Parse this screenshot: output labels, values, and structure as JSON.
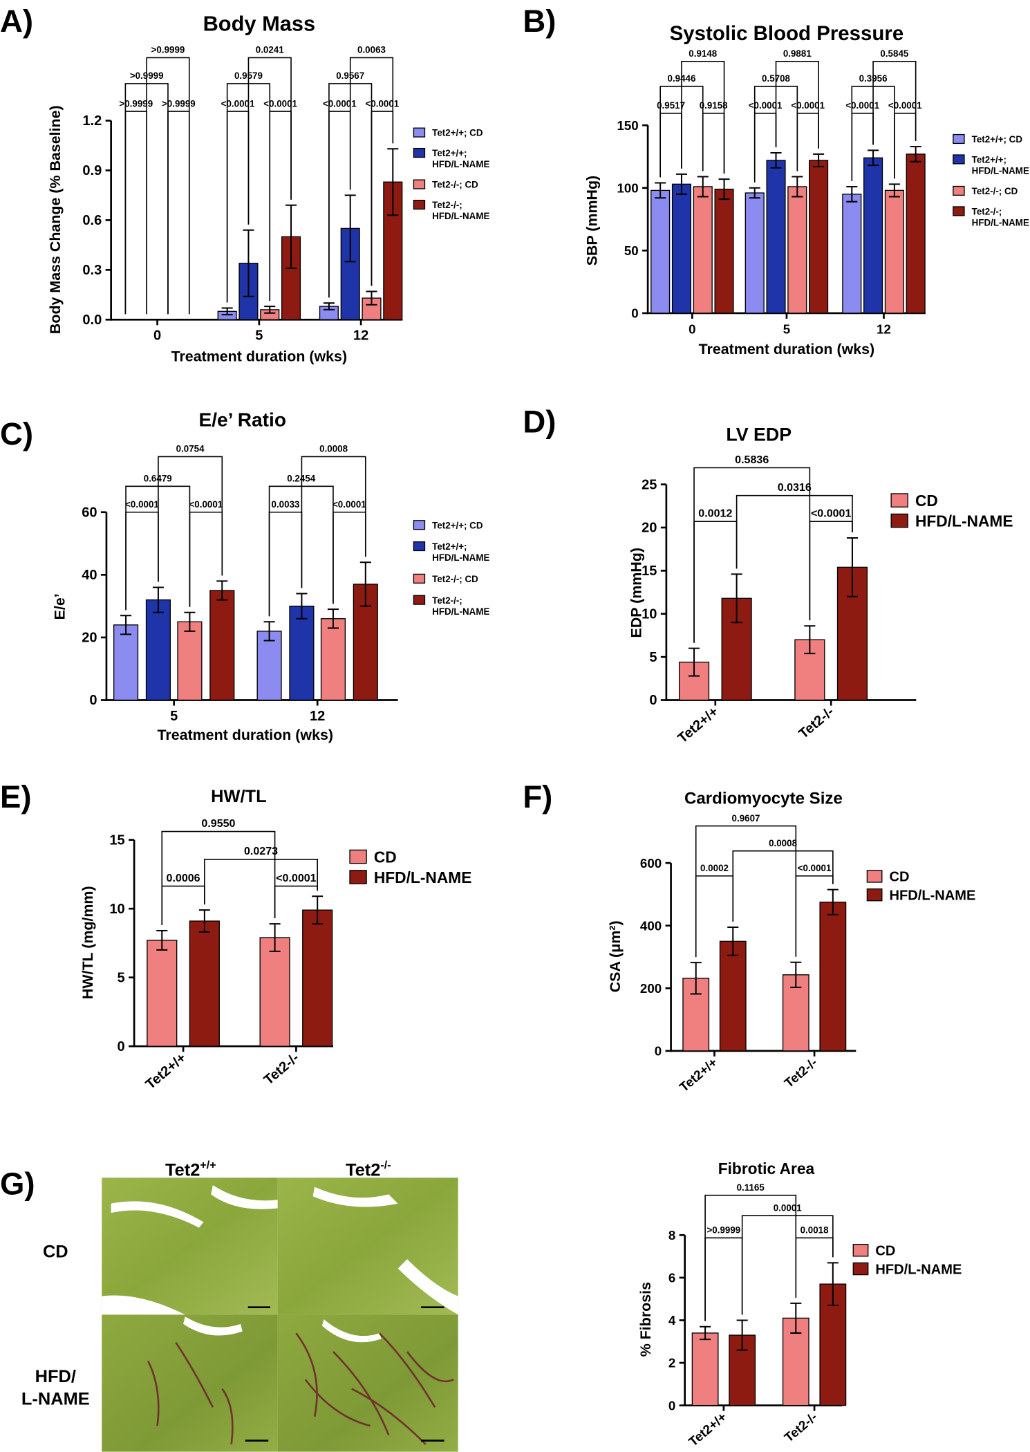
{
  "chart_data": [
    {
      "type": "bar",
      "panel": "A)",
      "title": "Body Mass",
      "xlabel": "Treatment duration (wks)",
      "ylabel": "Body Mass Change (% Baseline)",
      "categories": [
        "0",
        "5",
        "12"
      ],
      "series": [
        {
          "name": "Tet2+/+; CD",
          "color": "#8c8cf0",
          "values": [
            0,
            0.05,
            0.08
          ],
          "errors": [
            0,
            0.02,
            0.02
          ]
        },
        {
          "name": "Tet2+/+; HFD/L-NAME",
          "color": "#1f34a8",
          "values": [
            0,
            0.34,
            0.55
          ],
          "errors": [
            0,
            0.2,
            0.2
          ]
        },
        {
          "name": "Tet2-/-; CD",
          "color": "#f08080",
          "values": [
            0,
            0.06,
            0.13
          ],
          "errors": [
            0,
            0.02,
            0.04
          ]
        },
        {
          "name": "Tet2-/-; HFD/L-NAME",
          "color": "#8e1b12",
          "values": [
            0,
            0.5,
            0.83
          ],
          "errors": [
            0,
            0.19,
            0.2
          ]
        }
      ],
      "ylim": [
        0,
        1.2
      ],
      "yticks": [
        {
          "value": 0,
          "label": "0.0"
        },
        0.3,
        0.6,
        0.9,
        1.2
      ],
      "annotations": [
        ">0.9999",
        ">0.9999",
        ">0.9999",
        ">0.9999",
        "<0.0001",
        "<0.0001",
        "0.9579",
        "0.0241",
        "<0.0001",
        "<0.0001",
        "0.9567",
        "0.0063"
      ]
    },
    {
      "type": "bar",
      "panel": "B)",
      "title": "Systolic Blood Pressure",
      "xlabel": "Treatment duration (wks)",
      "ylabel": "SBP (mmHg)",
      "categories": [
        "0",
        "5",
        "12"
      ],
      "series": [
        {
          "name": "Tet2+/+; CD",
          "color": "#8c8cf0",
          "values": [
            98,
            96,
            95
          ],
          "errors": [
            6,
            4,
            6
          ]
        },
        {
          "name": "Tet2+/+; HFD/L-NAME",
          "color": "#1f34a8",
          "values": [
            103,
            122,
            124
          ],
          "errors": [
            8,
            6,
            6
          ]
        },
        {
          "name": "Tet2-/-; CD",
          "color": "#f08080",
          "values": [
            101,
            101,
            98
          ],
          "errors": [
            8,
            8,
            5
          ]
        },
        {
          "name": "Tet2-/-; HFD/L-NAME",
          "color": "#8e1b12",
          "values": [
            99,
            122,
            127
          ],
          "errors": [
            8,
            5,
            6
          ]
        }
      ],
      "ylim": [
        0,
        150
      ],
      "yticks": [
        0,
        50,
        100,
        150
      ],
      "annotations": [
        "0.9517",
        "0.9158",
        "0.9446",
        "0.9148",
        "<0.0001",
        "<0.0001",
        "0.5708",
        "0.9881",
        "<0.0001",
        "<0.0001",
        "0.3956",
        "0.5845"
      ]
    },
    {
      "type": "bar",
      "panel": "C)",
      "title": "E/e’ Ratio",
      "xlabel": "Treatment duration (wks)",
      "ylabel": "E/e’",
      "categories": [
        "5",
        "12"
      ],
      "series": [
        {
          "name": "Tet2+/+; CD",
          "color": "#8c8cf0",
          "values": [
            24,
            22
          ],
          "errors": [
            3,
            3
          ]
        },
        {
          "name": "Tet2+/+; HFD/L-NAME",
          "color": "#1f34a8",
          "values": [
            32,
            30
          ],
          "errors": [
            4,
            4
          ]
        },
        {
          "name": "Tet2-/-; CD",
          "color": "#f08080",
          "values": [
            25,
            26
          ],
          "errors": [
            3,
            3
          ]
        },
        {
          "name": "Tet2-/-; HFD/L-NAME",
          "color": "#8e1b12",
          "values": [
            35,
            37
          ],
          "errors": [
            3,
            7
          ]
        }
      ],
      "ylim": [
        0,
        60
      ],
      "yticks": [
        0,
        20,
        40,
        60
      ],
      "annotations": [
        "<0.0001",
        "<0.0001",
        "0.6479",
        "0.0754",
        "0.0033",
        "<0.0001",
        "0.2454",
        "0.0008"
      ]
    },
    {
      "type": "bar",
      "panel": "D)",
      "title": "LV EDP",
      "ylabel": "EDP (mmHg)",
      "categories": [
        "Tet2+/+",
        "Tet2-/-"
      ],
      "series": [
        {
          "name": "CD",
          "color": "#f08080",
          "values": [
            4.4,
            7.0
          ],
          "errors": [
            1.6,
            1.6
          ]
        },
        {
          "name": "HFD/L-NAME",
          "color": "#8e1b12",
          "values": [
            11.8,
            15.4
          ],
          "errors": [
            2.8,
            3.4
          ]
        }
      ],
      "ylim": [
        0,
        25
      ],
      "yticks": [
        0,
        5,
        10,
        15,
        20,
        25
      ],
      "annotations": [
        "0.0012",
        "<0.0001",
        "0.5836",
        "0.0316"
      ]
    },
    {
      "type": "bar",
      "panel": "E)",
      "title": "HW/TL",
      "ylabel": "HW/TL (mg/mm)",
      "categories": [
        "Tet2+/+",
        "Tet2-/-"
      ],
      "series": [
        {
          "name": "CD",
          "color": "#f08080",
          "values": [
            7.7,
            7.9
          ],
          "errors": [
            0.7,
            1.0
          ]
        },
        {
          "name": "HFD/L-NAME",
          "color": "#8e1b12",
          "values": [
            9.1,
            9.9
          ],
          "errors": [
            0.8,
            1.0
          ]
        }
      ],
      "ylim": [
        0,
        15
      ],
      "yticks": [
        0,
        5,
        10,
        15
      ],
      "annotations": [
        "0.0006",
        "<0.0001",
        "0.9550",
        "0.0273"
      ]
    },
    {
      "type": "bar",
      "panel": "F)",
      "title": "Cardiomyocyte Size",
      "ylabel": "CSA (μm²)",
      "categories": [
        "Tet2+/+",
        "Tet2-/-"
      ],
      "series": [
        {
          "name": "CD",
          "color": "#f08080",
          "values": [
            232,
            243
          ],
          "errors": [
            50,
            40
          ]
        },
        {
          "name": "HFD/L-NAME",
          "color": "#8e1b12",
          "values": [
            350,
            475
          ],
          "errors": [
            45,
            40
          ]
        }
      ],
      "ylim": [
        0,
        600
      ],
      "yticks": [
        0,
        200,
        400,
        600
      ],
      "annotations": [
        "0.0002",
        "<0.0001",
        "0.9607",
        "0.0008"
      ]
    },
    {
      "type": "bar",
      "title": "Fibrotic Area",
      "ylabel": "% Fibrosis",
      "categories": [
        "Tet2+/+",
        "Tet2-/-"
      ],
      "series": [
        {
          "name": "CD",
          "color": "#f08080",
          "values": [
            3.4,
            4.1
          ],
          "errors": [
            0.3,
            0.7
          ]
        },
        {
          "name": "HFD/L-NAME",
          "color": "#8e1b12",
          "values": [
            3.3,
            5.7
          ],
          "errors": [
            0.7,
            1.0
          ]
        }
      ],
      "ylim": [
        0,
        8
      ],
      "yticks": [
        0,
        2,
        4,
        6,
        8
      ],
      "annotations": [
        ">0.9999",
        "0.0018",
        "0.1165",
        "0.0001"
      ]
    }
  ],
  "histology": {
    "panel": "G)",
    "columns": [
      {
        "base": "Tet2",
        "sup": "+/+"
      },
      {
        "base": "Tet2",
        "sup": "-/-"
      }
    ],
    "rows": [
      [
        "CD"
      ],
      [
        "HFD/",
        "L-NAME"
      ]
    ]
  }
}
